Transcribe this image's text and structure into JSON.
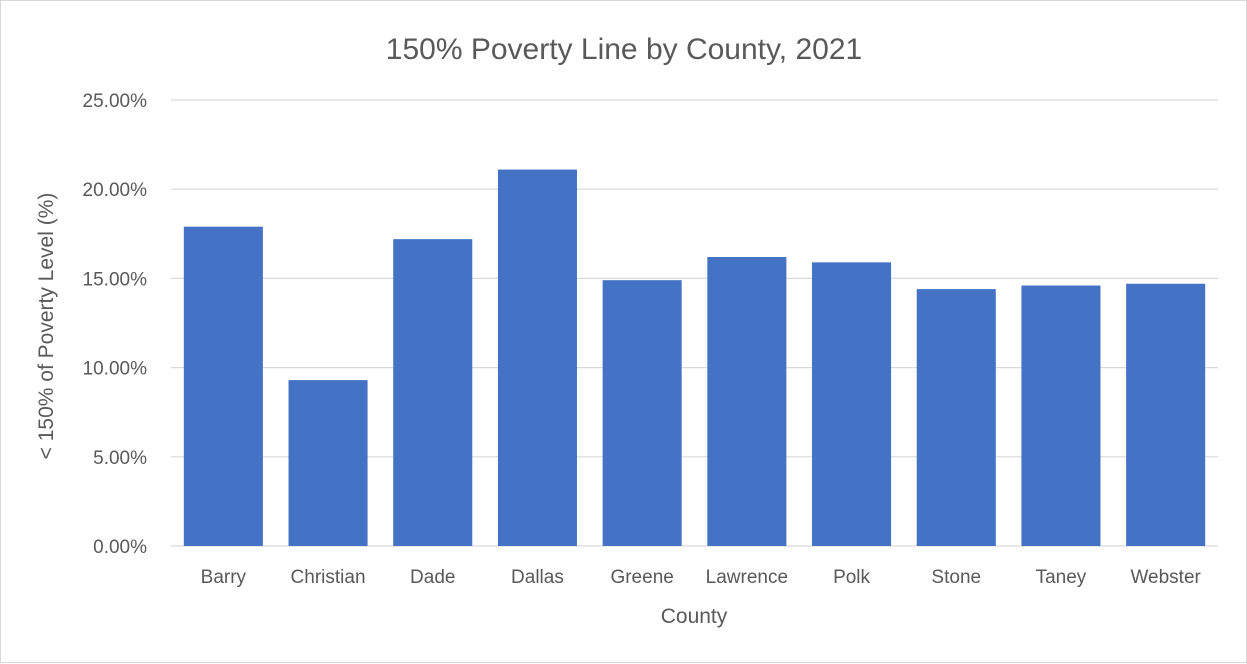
{
  "chart_data": {
    "type": "bar",
    "title": "150% Poverty Line by County, 2021",
    "xlabel": "County",
    "ylabel": "< 150% of Poverty Level (%)",
    "categories": [
      "Barry",
      "Christian",
      "Dade",
      "Dallas",
      "Greene",
      "Lawrence",
      "Polk",
      "Stone",
      "Taney",
      "Webster"
    ],
    "values": [
      17.9,
      9.3,
      17.2,
      21.1,
      14.9,
      16.2,
      15.9,
      14.4,
      14.6,
      14.7
    ],
    "ylim": [
      0,
      25
    ],
    "yticks": [
      "0.00%",
      "5.00%",
      "10.00%",
      "15.00%",
      "20.00%",
      "25.00%"
    ],
    "grid": true,
    "legend": "none",
    "bar_color": "#4472c4",
    "grid_color": "#d9d9d9",
    "text_color": "#595959"
  }
}
